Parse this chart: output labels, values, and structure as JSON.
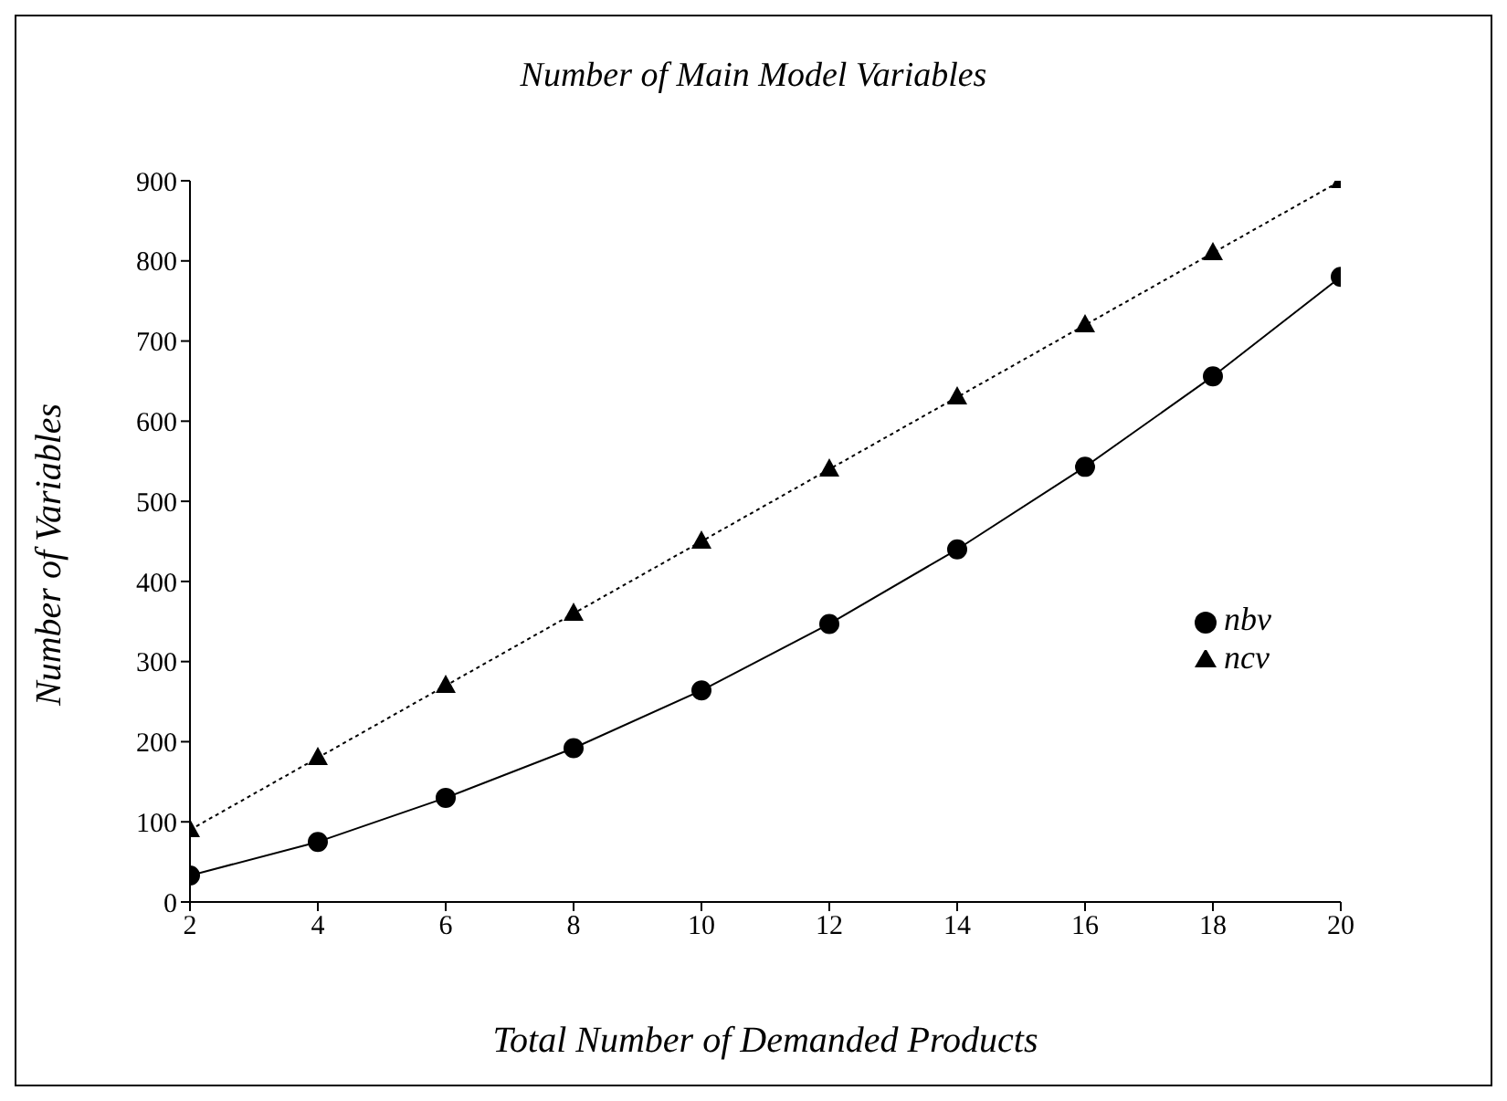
{
  "chart_data": {
    "type": "line",
    "title": "Number of Main Model Variables",
    "xlabel": "Total Number of Demanded Products",
    "ylabel": "Number of Variables",
    "x": [
      2,
      4,
      6,
      8,
      10,
      12,
      14,
      16,
      18,
      20
    ],
    "series": [
      {
        "name": "nbv",
        "color": "#000000",
        "marker": "circle",
        "line_style": "solid",
        "values": [
          33,
          75,
          130,
          192,
          264,
          347,
          440,
          543,
          656,
          780
        ]
      },
      {
        "name": "ncv",
        "color": "#000000",
        "marker": "triangle",
        "line_style": "dotted",
        "values": [
          90,
          180,
          270,
          360,
          450,
          540,
          630,
          720,
          810,
          900
        ]
      }
    ],
    "xlim": [
      2,
      20
    ],
    "xticks": [
      2,
      4,
      6,
      8,
      10,
      12,
      14,
      16,
      18,
      20
    ],
    "ylim": [
      0,
      900
    ],
    "yticks": [
      0,
      100,
      200,
      300,
      400,
      500,
      600,
      700,
      800,
      900
    ],
    "grid": false,
    "legend": "right"
  }
}
